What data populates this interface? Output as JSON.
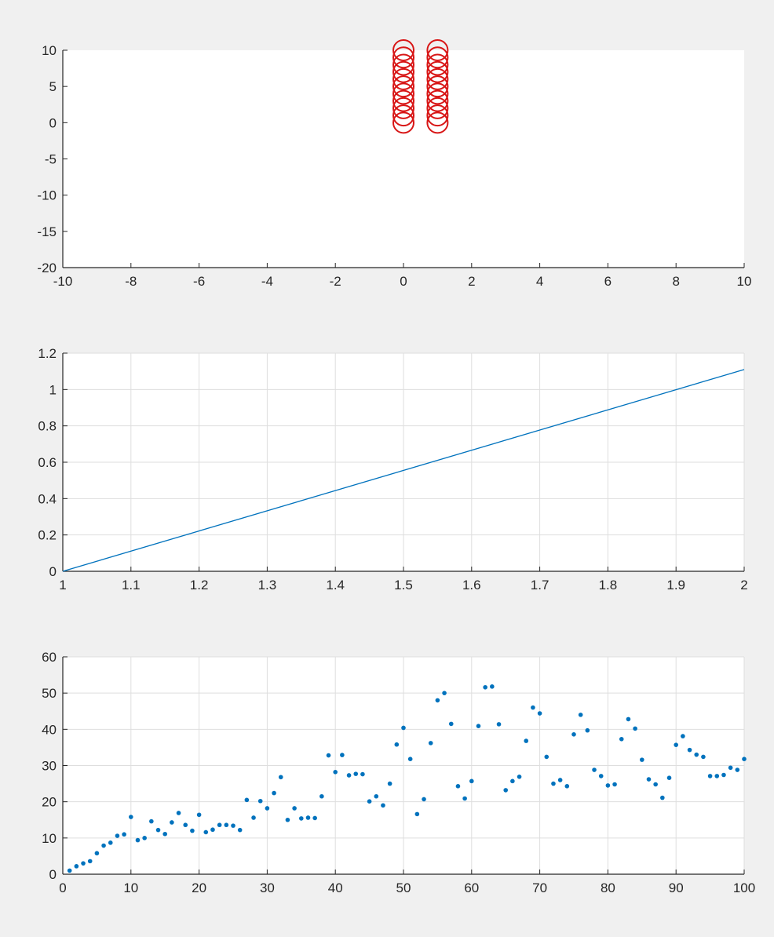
{
  "chart_data": [
    {
      "type": "scatter",
      "marker": "circle",
      "color": "#d81616",
      "xlim": [
        -10,
        10
      ],
      "ylim": [
        -20,
        10
      ],
      "grid": false,
      "xticks": [
        -10,
        -8,
        -6,
        -4,
        -2,
        0,
        2,
        4,
        6,
        8,
        10
      ],
      "yticks": [
        -20,
        -15,
        -10,
        -5,
        0,
        5,
        10
      ],
      "series": [
        {
          "x": [
            0,
            0,
            0,
            0,
            0,
            0,
            0,
            0,
            0,
            0,
            0
          ],
          "y": [
            0,
            1,
            2,
            3,
            4,
            5,
            6,
            7,
            8,
            9,
            10
          ]
        },
        {
          "x": [
            1,
            1,
            1,
            1,
            1,
            1,
            1,
            1,
            1,
            1,
            1
          ],
          "y": [
            0,
            1,
            2,
            3,
            4,
            5,
            6,
            7,
            8,
            9,
            10
          ]
        }
      ]
    },
    {
      "type": "line",
      "color": "#0072bd",
      "xlim": [
        1,
        2
      ],
      "ylim": [
        0,
        1.2
      ],
      "grid": true,
      "xticks": [
        1,
        1.1,
        1.2,
        1.3,
        1.4,
        1.5,
        1.6,
        1.7,
        1.8,
        1.9,
        2
      ],
      "yticks": [
        0,
        0.2,
        0.4,
        0.6,
        0.8,
        1,
        1.2
      ],
      "series": [
        {
          "x": [
            1,
            2
          ],
          "y": [
            0,
            1.11
          ]
        }
      ]
    },
    {
      "type": "scatter",
      "marker": "dot",
      "color": "#0072bd",
      "xlim": [
        0,
        100
      ],
      "ylim": [
        0,
        60
      ],
      "grid": true,
      "xticks": [
        0,
        10,
        20,
        30,
        40,
        50,
        60,
        70,
        80,
        90,
        100
      ],
      "yticks": [
        0,
        10,
        20,
        30,
        40,
        50,
        60
      ],
      "series": [
        {
          "x": [
            1,
            2,
            3,
            4,
            5,
            6,
            7,
            8,
            9,
            10,
            11,
            12,
            13,
            14,
            15,
            16,
            17,
            18,
            19,
            20,
            21,
            22,
            23,
            24,
            25,
            26,
            27,
            28,
            29,
            30,
            31,
            32,
            33,
            34,
            35,
            36,
            37,
            38,
            39,
            40,
            41,
            42,
            43,
            44,
            45,
            46,
            47,
            48,
            49,
            50,
            51,
            52,
            53,
            54,
            55,
            56,
            57,
            58,
            59,
            60,
            61,
            62,
            63,
            64,
            65,
            66,
            67,
            68,
            69,
            70,
            71,
            72,
            73,
            74,
            75,
            76,
            77,
            78,
            79,
            80,
            81,
            82,
            83,
            84,
            85,
            86,
            87,
            88,
            89,
            90,
            91,
            92,
            93,
            94,
            95,
            96,
            97,
            98,
            99,
            100
          ],
          "y": [
            1.0,
            2.2,
            3.0,
            3.6,
            5.8,
            7.9,
            8.7,
            10.6,
            11.0,
            15.8,
            9.4,
            10.0,
            14.6,
            12.2,
            11.1,
            14.3,
            16.9,
            13.6,
            12.0,
            16.4,
            11.6,
            12.3,
            13.6,
            13.6,
            13.4,
            12.2,
            20.5,
            15.6,
            20.2,
            18.2,
            22.4,
            26.8,
            15.0,
            18.2,
            15.4,
            15.6,
            15.5,
            21.5,
            32.8,
            28.2,
            32.9,
            27.3,
            27.7,
            27.6,
            20.1,
            21.5,
            19.0,
            25.0,
            35.8,
            40.4,
            31.8,
            16.6,
            20.7,
            36.2,
            48.0,
            50.0,
            41.5,
            24.3,
            20.9,
            25.7,
            40.9,
            51.6,
            51.8,
            41.4,
            23.2,
            25.7,
            26.9,
            36.8,
            46.0,
            44.4,
            32.4,
            25.0,
            26.0,
            24.3,
            38.6,
            44.0,
            39.7,
            28.8,
            27.1,
            24.5,
            24.8,
            37.3,
            42.8,
            40.2,
            31.6,
            26.2,
            24.8,
            21.1,
            26.6,
            35.7,
            38.1,
            34.3,
            33.0,
            32.4,
            27.1,
            27.1,
            27.4,
            29.4,
            28.8,
            31.8
          ]
        }
      ]
    }
  ]
}
